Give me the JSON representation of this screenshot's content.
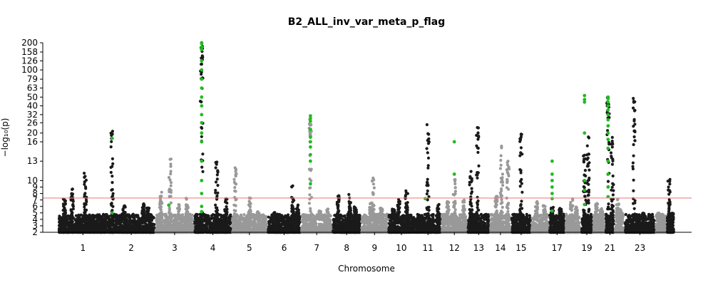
{
  "chart_data": {
    "type": "scatter",
    "title": "B2_ALL_inv_var_meta_p_flag",
    "xlabel": "Chromosome",
    "ylabel": "−log₁₀(p)",
    "y_scale": "piecewise: linear 2-16, log above 16",
    "y_ticks": [
      "2",
      "3",
      "4",
      "5",
      "6",
      "7",
      "8",
      "9",
      "10",
      "13",
      "16",
      "20",
      "26",
      "32",
      "40",
      "50",
      "63",
      "79",
      "100",
      "126",
      "158",
      "200"
    ],
    "ylim": [
      2,
      200
    ],
    "significance_line": {
      "value": 7.3,
      "color": "#f08080"
    },
    "x_tick_labels": [
      "1",
      "2",
      "3",
      "4",
      "5",
      "6",
      "7",
      "8",
      "9",
      "10",
      "11",
      "12",
      "13",
      "14",
      "15",
      "17",
      "19",
      "21",
      "23"
    ],
    "chromosomes": [
      {
        "chrom": "1",
        "color": "#1a1a1a",
        "peaks": [
          {
            "pos": 0.28,
            "y": 8.8
          },
          {
            "pos": 0.55,
            "y": 11.5
          },
          {
            "pos": 0.12,
            "y": 7.3
          }
        ]
      },
      {
        "chrom": "2",
        "color": "#1a1a1a",
        "peaks": [
          {
            "pos": 0.1,
            "y": 21
          },
          {
            "pos": 0.35,
            "y": 6.4
          },
          {
            "pos": 0.75,
            "y": 6.7
          },
          {
            "pos": 0.85,
            "y": 5.8
          }
        ]
      },
      {
        "chrom": "3",
        "color": "#999999",
        "peaks": [
          {
            "pos": 0.15,
            "y": 8.2
          },
          {
            "pos": 0.38,
            "y": 14
          },
          {
            "pos": 0.6,
            "y": 6.3
          },
          {
            "pos": 0.82,
            "y": 7.3
          }
        ]
      },
      {
        "chrom": "4",
        "color": "#1a1a1a",
        "peaks": [
          {
            "pos": 0.2,
            "y": 200
          },
          {
            "pos": 0.6,
            "y": 13
          },
          {
            "pos": 0.85,
            "y": 7.6
          }
        ]
      },
      {
        "chrom": "5",
        "color": "#999999",
        "peaks": [
          {
            "pos": 0.1,
            "y": 12
          },
          {
            "pos": 0.5,
            "y": 7.4
          },
          {
            "pos": 0.75,
            "y": 5.2
          }
        ]
      },
      {
        "chrom": "6",
        "color": "#1a1a1a",
        "peaks": [
          {
            "pos": 0.2,
            "y": 5.2
          },
          {
            "pos": 0.75,
            "y": 9.2
          },
          {
            "pos": 0.9,
            "y": 6.5
          }
        ]
      },
      {
        "chrom": "7",
        "color": "#999999",
        "peaks": [
          {
            "pos": 0.3,
            "y": 31
          },
          {
            "pos": 0.6,
            "y": 6
          },
          {
            "pos": 0.85,
            "y": 5.6
          }
        ]
      },
      {
        "chrom": "8",
        "color": "#1a1a1a",
        "peaks": [
          {
            "pos": 0.2,
            "y": 7.8
          },
          {
            "pos": 0.6,
            "y": 8
          },
          {
            "pos": 0.8,
            "y": 6
          }
        ]
      },
      {
        "chrom": "9",
        "color": "#999999",
        "peaks": [
          {
            "pos": 0.35,
            "y": 6.6
          },
          {
            "pos": 0.45,
            "y": 10.4
          },
          {
            "pos": 0.75,
            "y": 5.8
          }
        ]
      },
      {
        "chrom": "10",
        "color": "#1a1a1a",
        "peaks": [
          {
            "pos": 0.2,
            "y": 5.6
          },
          {
            "pos": 0.4,
            "y": 7.3
          },
          {
            "pos": 0.7,
            "y": 8.5
          }
        ]
      },
      {
        "chrom": "11",
        "color": "#1a1a1a",
        "peaks": [
          {
            "pos": 0.2,
            "y": 4.6
          },
          {
            "pos": 0.5,
            "y": 25
          },
          {
            "pos": 0.9,
            "y": 6.5
          }
        ]
      },
      {
        "chrom": "12",
        "color": "#999999",
        "peaks": [
          {
            "pos": 0.25,
            "y": 6.8
          },
          {
            "pos": 0.5,
            "y": 10.5
          },
          {
            "pos": 0.85,
            "y": 7.3
          }
        ]
      },
      {
        "chrom": "13",
        "color": "#1a1a1a",
        "peaks": [
          {
            "pos": 0.15,
            "y": 12
          },
          {
            "pos": 0.45,
            "y": 24
          },
          {
            "pos": 0.8,
            "y": 4.8
          }
        ]
      },
      {
        "chrom": "14",
        "color": "#999999",
        "peaks": [
          {
            "pos": 0.3,
            "y": 7.6
          },
          {
            "pos": 0.55,
            "y": 15.5
          },
          {
            "pos": 0.85,
            "y": 13
          }
        ]
      },
      {
        "chrom": "15",
        "color": "#1a1a1a",
        "peaks": [
          {
            "pos": 0.5,
            "y": 20
          },
          {
            "pos": 0.2,
            "y": 4.8
          }
        ]
      },
      {
        "chrom": "16",
        "color": "#999999",
        "peaks": [
          {
            "pos": 0.3,
            "y": 6.8
          },
          {
            "pos": 0.75,
            "y": 6.2
          }
        ]
      },
      {
        "chrom": "17",
        "color": "#1a1a1a",
        "peaks": [
          {
            "pos": 0.2,
            "y": 5.9
          },
          {
            "pos": 0.7,
            "y": 5.8
          }
        ]
      },
      {
        "chrom": "18",
        "color": "#999999",
        "peaks": [
          {
            "pos": 0.4,
            "y": 7.2
          },
          {
            "pos": 0.7,
            "y": 6
          }
        ]
      },
      {
        "chrom": "19",
        "color": "#1a1a1a",
        "peaks": [
          {
            "pos": 0.3,
            "y": 14
          },
          {
            "pos": 0.6,
            "y": 20
          }
        ]
      },
      {
        "chrom": "20",
        "color": "#999999",
        "peaks": [
          {
            "pos": 0.3,
            "y": 6.5
          },
          {
            "pos": 0.7,
            "y": 5.8
          }
        ]
      },
      {
        "chrom": "21",
        "color": "#1a1a1a",
        "peaks": [
          {
            "pos": 0.3,
            "y": 50
          },
          {
            "pos": 0.75,
            "y": 18
          }
        ]
      },
      {
        "chrom": "22",
        "color": "#999999",
        "peaks": [
          {
            "pos": 0.3,
            "y": 7.3
          },
          {
            "pos": 0.7,
            "y": 5.5
          }
        ]
      },
      {
        "chrom": "23",
        "color": "#1a1a1a",
        "peaks": [
          {
            "pos": 0.3,
            "y": 50
          },
          {
            "pos": 0.6,
            "y": 5
          }
        ]
      },
      {
        "chrom": "24",
        "color": "#999999",
        "peaks": [
          {
            "pos": 0.3,
            "y": 5
          }
        ]
      },
      {
        "chrom": "25",
        "color": "#1a1a1a",
        "peaks": [
          {
            "pos": 0.3,
            "y": 10.3
          },
          {
            "pos": 0.7,
            "y": 5
          }
        ]
      }
    ],
    "flagged_points": [
      {
        "chrom": "2",
        "y": 17.5
      },
      {
        "chrom": "2",
        "y": 5
      },
      {
        "chrom": "3",
        "y": 6.2
      },
      {
        "chrom": "4",
        "y": 200
      },
      {
        "chrom": "4",
        "y": 196
      },
      {
        "chrom": "4",
        "y": 180
      },
      {
        "chrom": "4",
        "y": 168
      },
      {
        "chrom": "4",
        "y": 126
      },
      {
        "chrom": "4",
        "y": 100
      },
      {
        "chrom": "4",
        "y": 79
      },
      {
        "chrom": "4",
        "y": 63
      },
      {
        "chrom": "4",
        "y": 50
      },
      {
        "chrom": "4",
        "y": 40
      },
      {
        "chrom": "4",
        "y": 32
      },
      {
        "chrom": "4",
        "y": 26
      },
      {
        "chrom": "4",
        "y": 20
      },
      {
        "chrom": "4",
        "y": 16
      },
      {
        "chrom": "4",
        "y": 13
      },
      {
        "chrom": "4",
        "y": 10
      },
      {
        "chrom": "4",
        "y": 8
      },
      {
        "chrom": "4",
        "y": 6
      },
      {
        "chrom": "4",
        "y": 5.2
      },
      {
        "chrom": "7",
        "y": 31
      },
      {
        "chrom": "7",
        "y": 29
      },
      {
        "chrom": "7",
        "y": 27
      },
      {
        "chrom": "7",
        "y": 22
      },
      {
        "chrom": "7",
        "y": 18
      },
      {
        "chrom": "7",
        "y": 16
      },
      {
        "chrom": "7",
        "y": 15.2
      },
      {
        "chrom": "7",
        "y": 14
      },
      {
        "chrom": "7",
        "y": 13
      },
      {
        "chrom": "7",
        "y": 9.5
      },
      {
        "chrom": "11",
        "y": 7.2
      },
      {
        "chrom": "12",
        "y": 16
      },
      {
        "chrom": "12",
        "y": 11
      },
      {
        "chrom": "17",
        "y": 13
      },
      {
        "chrom": "17",
        "y": 11
      },
      {
        "chrom": "17",
        "y": 10
      },
      {
        "chrom": "17",
        "y": 9
      },
      {
        "chrom": "17",
        "y": 8
      },
      {
        "chrom": "17",
        "y": 7.2
      },
      {
        "chrom": "17",
        "y": 5.3
      },
      {
        "chrom": "19",
        "y": 52
      },
      {
        "chrom": "19",
        "y": 47
      },
      {
        "chrom": "19",
        "y": 44
      },
      {
        "chrom": "19",
        "y": 20
      },
      {
        "chrom": "19",
        "y": 10
      },
      {
        "chrom": "19",
        "y": 8.5
      },
      {
        "chrom": "19",
        "y": 6.3
      },
      {
        "chrom": "21",
        "y": 50
      },
      {
        "chrom": "21",
        "y": 48
      },
      {
        "chrom": "21",
        "y": 44
      },
      {
        "chrom": "21",
        "y": 40
      },
      {
        "chrom": "21",
        "y": 36
      },
      {
        "chrom": "21",
        "y": 32
      },
      {
        "chrom": "21",
        "y": 28
      },
      {
        "chrom": "21",
        "y": 24
      },
      {
        "chrom": "21",
        "y": 20
      },
      {
        "chrom": "21",
        "y": 17
      },
      {
        "chrom": "21",
        "y": 15
      },
      {
        "chrom": "21",
        "y": 13
      },
      {
        "chrom": "21",
        "y": 11
      },
      {
        "chrom": "21",
        "y": 9
      },
      {
        "chrom": "21",
        "y": 7.5
      }
    ],
    "flag_color": "#22bb22",
    "grid": false
  }
}
